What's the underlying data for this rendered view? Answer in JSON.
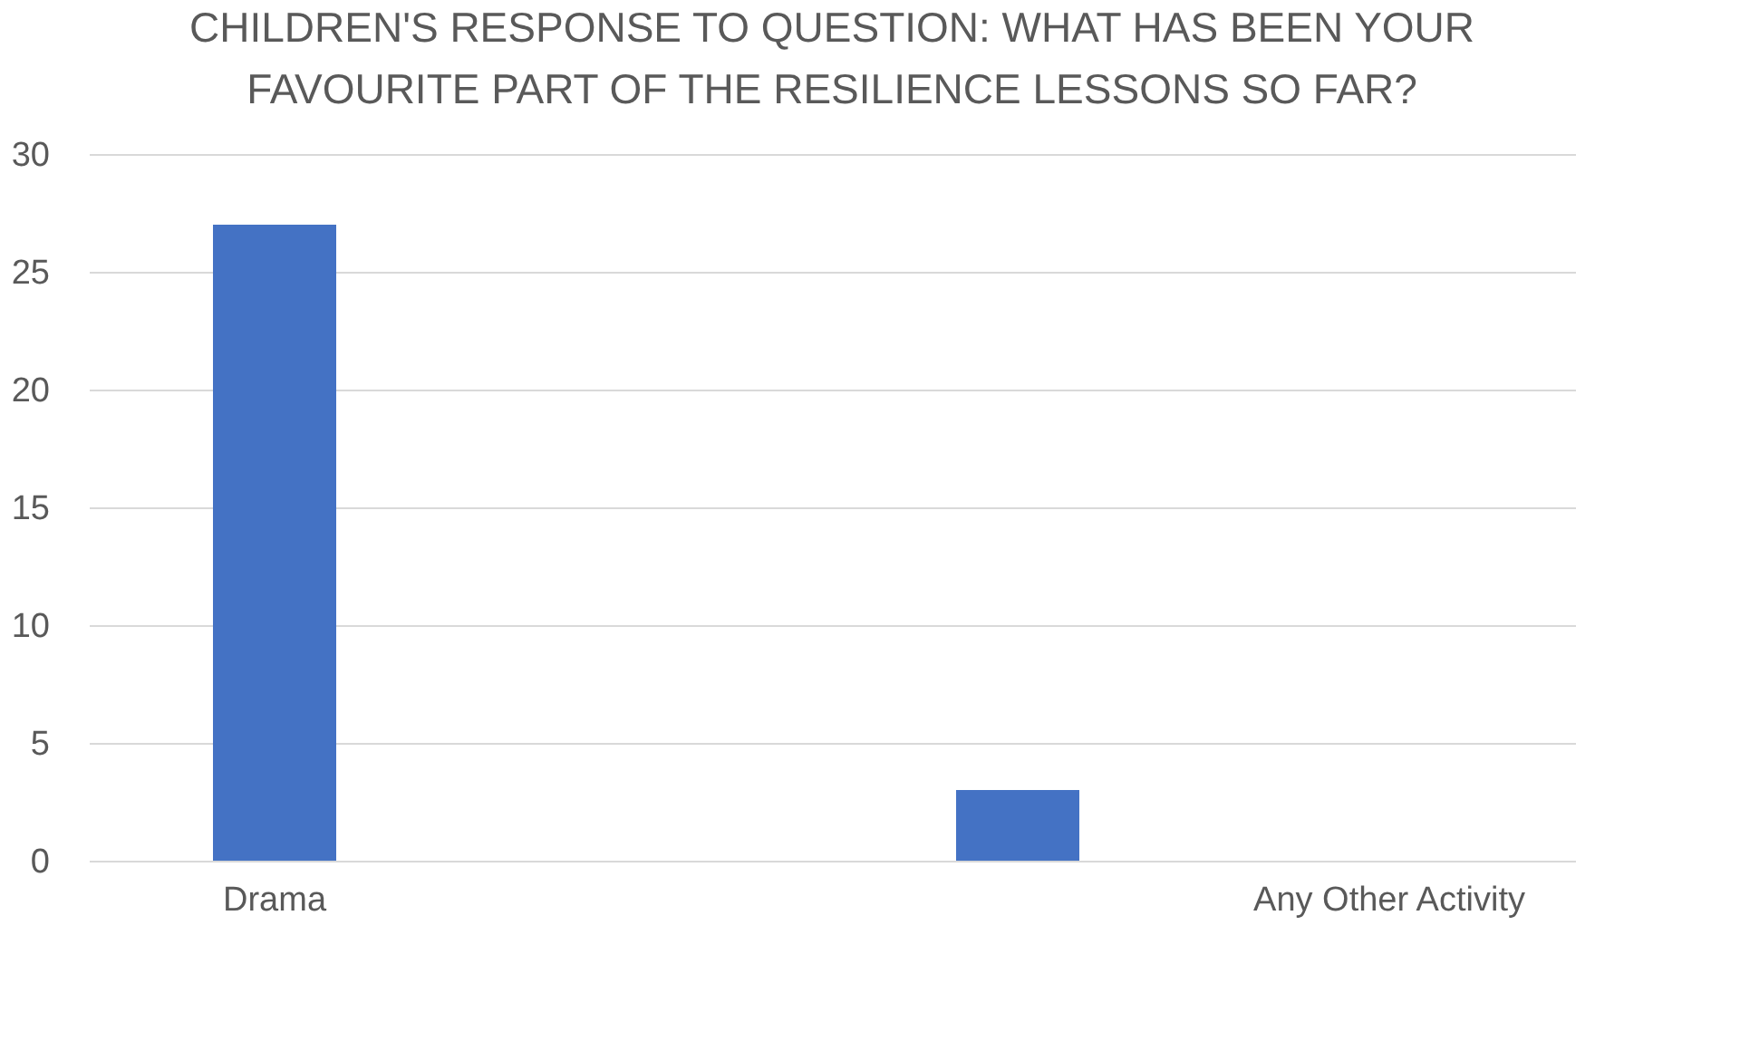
{
  "chart_data": {
    "type": "bar",
    "title": "CHILDREN'S RESPONSE TO QUESTION: WHAT HAS BEEN YOUR\nFAVOURITE PART OF THE RESILIENCE LESSONS SO FAR?",
    "categories": [
      "Drama",
      null,
      null,
      "Any Other Activity"
    ],
    "values": [
      27,
      0,
      3,
      0
    ],
    "color": "#4472c4",
    "ylim": [
      0,
      30
    ],
    "yticks": [
      0,
      5,
      10,
      15,
      20,
      25,
      30
    ],
    "grid": "y"
  }
}
